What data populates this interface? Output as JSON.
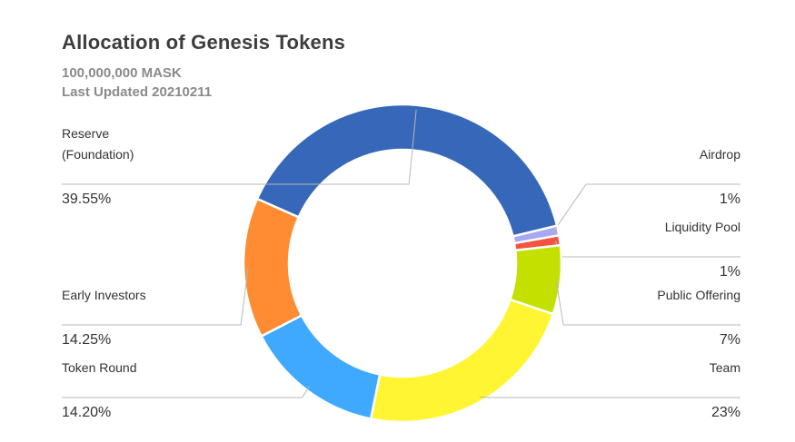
{
  "header": {
    "title": "Allocation of Genesis Tokens",
    "supply": "100,000,000 MASK",
    "updated": "Last Updated 20210211"
  },
  "chart_data": {
    "type": "pie",
    "variant": "donut",
    "title": "Allocation of Genesis Tokens",
    "subtitle": [
      "100,000,000 MASK",
      "Last Updated 20210211"
    ],
    "slices": [
      {
        "label": "Airdrop",
        "value": 1,
        "display": "1%",
        "color": "#a6a9f2"
      },
      {
        "label": "Liquidity Pool",
        "value": 1,
        "display": "1%",
        "color": "#f4533e"
      },
      {
        "label": "Public Offering",
        "value": 7,
        "display": "7%",
        "color": "#c4e000"
      },
      {
        "label": "Team",
        "value": 23,
        "display": "23%",
        "color": "#fff533"
      },
      {
        "label": "Token Round",
        "value": 14.2,
        "display": "14.20%",
        "color": "#3fa9ff"
      },
      {
        "label": "Early Investors",
        "value": 14.25,
        "display": "14.25%",
        "color": "#ff8c33"
      },
      {
        "label": "Reserve (Foundation)",
        "lines": [
          "Reserve",
          "(Foundation)"
        ],
        "value": 39.55,
        "display": "39.55%",
        "color": "#3667b8"
      }
    ]
  }
}
